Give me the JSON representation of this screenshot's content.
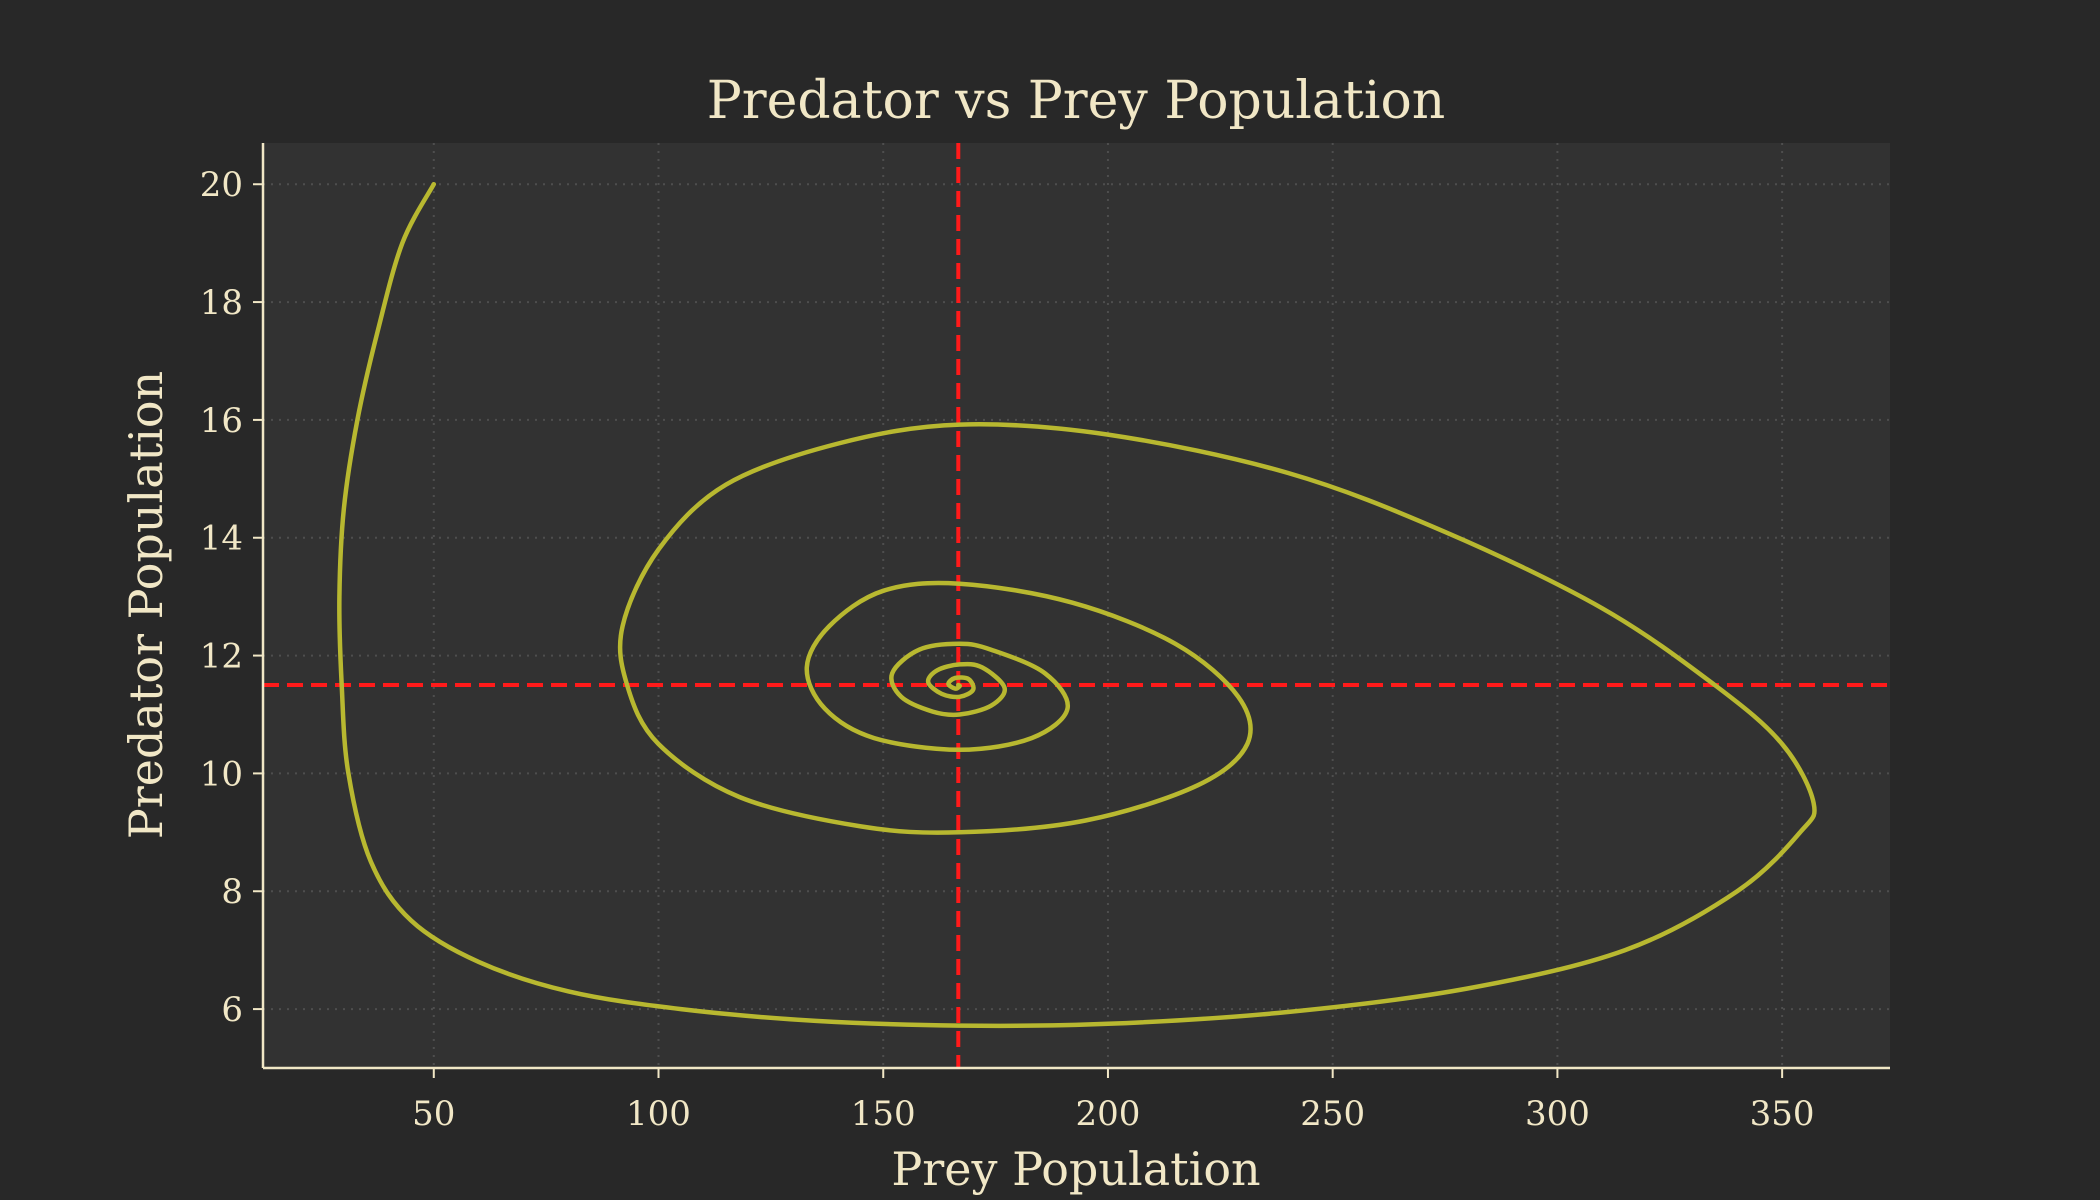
{
  "chart_data": {
    "type": "line",
    "title": "Predator vs Prey Population",
    "xlabel": "Prey Population",
    "ylabel": "Predator Population",
    "xlim": [
      12,
      374
    ],
    "ylim": [
      5,
      20.7
    ],
    "xticks": [
      50,
      100,
      150,
      200,
      250,
      300,
      350
    ],
    "yticks": [
      6,
      8,
      10,
      12,
      14,
      16,
      18,
      20
    ],
    "grid": true,
    "equilibrium": {
      "x": 166.7,
      "y": 11.5,
      "color": "#ff1a1a"
    },
    "series": [
      {
        "color": "#b8b830",
        "points": [
          [
            50,
            20
          ],
          [
            43,
            19
          ],
          [
            37.5,
            17.5
          ],
          [
            33,
            16
          ],
          [
            30,
            14.5
          ],
          [
            29,
            13
          ],
          [
            29.5,
            11.5
          ],
          [
            31,
            10
          ],
          [
            36,
            8.5
          ],
          [
            45,
            7.5
          ],
          [
            60,
            6.8
          ],
          [
            80,
            6.3
          ],
          [
            105,
            6
          ],
          [
            135,
            5.8
          ],
          [
            167,
            5.72
          ],
          [
            200,
            5.75
          ],
          [
            240,
            5.95
          ],
          [
            280,
            6.35
          ],
          [
            315,
            7
          ],
          [
            340,
            8
          ],
          [
            354,
            9
          ],
          [
            357,
            9.5
          ],
          [
            350,
            10.5
          ],
          [
            335,
            11.5
          ],
          [
            310,
            12.8
          ],
          [
            275,
            14.1
          ],
          [
            240,
            15.1
          ],
          [
            200,
            15.75
          ],
          [
            167,
            15.92
          ],
          [
            140,
            15.6
          ],
          [
            115,
            14.9
          ],
          [
            100,
            13.8
          ],
          [
            92,
            12.5
          ],
          [
            93,
            11.5
          ],
          [
            100,
            10.5
          ],
          [
            118,
            9.6
          ],
          [
            145,
            9.1
          ],
          [
            167,
            9
          ],
          [
            195,
            9.2
          ],
          [
            220,
            9.8
          ],
          [
            231,
            10.5
          ],
          [
            229,
            11.3
          ],
          [
            215,
            12.2
          ],
          [
            192,
            12.9
          ],
          [
            167,
            13.22
          ],
          [
            150,
            13.1
          ],
          [
            138,
            12.5
          ],
          [
            133,
            11.8
          ],
          [
            137,
            11.1
          ],
          [
            148,
            10.6
          ],
          [
            167,
            10.4
          ],
          [
            183,
            10.6
          ],
          [
            191,
            11.1
          ],
          [
            186,
            11.7
          ],
          [
            174,
            12.1
          ],
          [
            167,
            12.2
          ],
          [
            158,
            12.1
          ],
          [
            152,
            11.7
          ],
          [
            154,
            11.3
          ],
          [
            161,
            11.05
          ],
          [
            167,
            11
          ],
          [
            174,
            11.15
          ],
          [
            177,
            11.45
          ],
          [
            172,
            11.8
          ],
          [
            167,
            11.85
          ],
          [
            162,
            11.75
          ],
          [
            160,
            11.55
          ],
          [
            163,
            11.35
          ],
          [
            167,
            11.3
          ],
          [
            170,
            11.42
          ],
          [
            169,
            11.6
          ],
          [
            166,
            11.62
          ],
          [
            164.5,
            11.52
          ],
          [
            166,
            11.44
          ],
          [
            167,
            11.48
          ],
          [
            166.7,
            11.5
          ]
        ]
      }
    ]
  }
}
